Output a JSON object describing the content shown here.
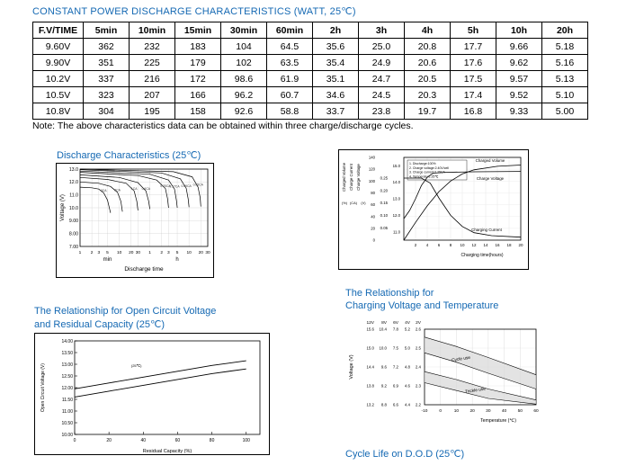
{
  "colors": {
    "accent": "#1569b3",
    "text": "#000000",
    "grid": "#cfcfcf",
    "band_fill": "#d9d9d9"
  },
  "header": {
    "title": "CONSTANT POWER DISCHARGE CHARACTERISTICS (WATT, 25℃)",
    "note": "Note: The above characteristics data can be obtained within three charge/discharge cycles."
  },
  "table": {
    "headers": [
      "F.V/TIME",
      "5min",
      "10min",
      "15min",
      "30min",
      "60min",
      "2h",
      "3h",
      "4h",
      "5h",
      "10h",
      "20h"
    ],
    "rows": [
      [
        "9.60V",
        "362",
        "232",
        "183",
        "104",
        "64.5",
        "35.6",
        "25.0",
        "20.8",
        "17.7",
        "9.66",
        "5.18"
      ],
      [
        "9.90V",
        "351",
        "225",
        "179",
        "102",
        "63.5",
        "35.4",
        "24.9",
        "20.6",
        "17.6",
        "9.62",
        "5.16"
      ],
      [
        "10.2V",
        "337",
        "216",
        "172",
        "98.6",
        "61.9",
        "35.1",
        "24.7",
        "20.5",
        "17.5",
        "9.57",
        "5.13"
      ],
      [
        "10.5V",
        "323",
        "207",
        "166",
        "96.2",
        "60.7",
        "34.6",
        "24.5",
        "20.3",
        "17.4",
        "9.52",
        "5.10"
      ],
      [
        "10.8V",
        "304",
        "195",
        "158",
        "92.6",
        "58.8",
        "33.7",
        "23.8",
        "19.7",
        "16.8",
        "9.33",
        "5.00"
      ]
    ]
  },
  "section_titles": {
    "discharge": "Discharge Characteristics (25℃)",
    "ocv_line1": "The Relationship for Open Circuit Voltage",
    "ocv_line2": "and Residual Capacity (25℃)",
    "charging_temp_line1": "The Relationship for",
    "charging_temp_line2": "Charging Voltage and Temperature",
    "cycle_life": "Cycle Life on D.O.D (25℃)"
  },
  "chart_data": [
    {
      "id": "discharge-characteristics",
      "type": "line",
      "title": "Discharge Characteristics (25℃)",
      "xlabel": "Discharge time",
      "ylabel": "Voltage (V)",
      "x_scale": "log",
      "x_max_minutes": 1800,
      "x_unit_labels": [
        "min",
        "h"
      ],
      "x_ticks": [
        {
          "t": 1,
          "label": "1"
        },
        {
          "t": 2,
          "label": "2"
        },
        {
          "t": 3,
          "label": "3"
        },
        {
          "t": 5,
          "label": "5"
        },
        {
          "t": 10,
          "label": "10"
        },
        {
          "t": 20,
          "label": "20"
        },
        {
          "t": 30,
          "label": "30"
        },
        {
          "t": 60,
          "label": "1"
        },
        {
          "t": 120,
          "label": "2"
        },
        {
          "t": 180,
          "label": "3"
        },
        {
          "t": 300,
          "label": "5"
        },
        {
          "t": 600,
          "label": "10"
        },
        {
          "t": 1200,
          "label": "20"
        },
        {
          "t": 1800,
          "label": "30"
        }
      ],
      "y_ticks": [
        "13.0",
        "12.0",
        "11.0",
        "10.0",
        "9.00",
        "8.00",
        "7.00"
      ],
      "ylim": [
        7.0,
        13.0
      ],
      "series": [
        {
          "name": "3CA",
          "points": [
            [
              1,
              11.6
            ],
            [
              2,
              11.55
            ],
            [
              3,
              11.45
            ],
            [
              4,
              11.15
            ],
            [
              5,
              10.6
            ],
            [
              6,
              9.6
            ]
          ]
        },
        {
          "name": "2CA",
          "points": [
            [
              1,
              12.0
            ],
            [
              3,
              11.9
            ],
            [
              6,
              11.65
            ],
            [
              9,
              11.2
            ],
            [
              11,
              10.5
            ],
            [
              12,
              9.7
            ]
          ]
        },
        {
          "name": "1CA",
          "points": [
            [
              1,
              12.35
            ],
            [
              5,
              12.2
            ],
            [
              15,
              11.9
            ],
            [
              24,
              11.3
            ],
            [
              28,
              10.5
            ],
            [
              30,
              9.8
            ]
          ]
        },
        {
          "name": "0.6CA",
          "points": [
            [
              1,
              12.55
            ],
            [
              10,
              12.35
            ],
            [
              30,
              11.95
            ],
            [
              48,
              11.3
            ],
            [
              56,
              10.5
            ],
            [
              60,
              9.9
            ]
          ]
        },
        {
          "name": "0.25CA",
          "points": [
            [
              1,
              12.75
            ],
            [
              30,
              12.5
            ],
            [
              90,
              12.15
            ],
            [
              150,
              11.5
            ],
            [
              170,
              10.7
            ],
            [
              180,
              10.0
            ]
          ]
        },
        {
          "name": "0.17CA",
          "points": [
            [
              1,
              12.85
            ],
            [
              60,
              12.6
            ],
            [
              180,
              12.15
            ],
            [
              255,
              11.45
            ],
            [
              285,
              10.6
            ],
            [
              300,
              10.0
            ]
          ]
        },
        {
          "name": "0.09CA",
          "points": [
            [
              1,
              12.95
            ],
            [
              120,
              12.7
            ],
            [
              360,
              12.25
            ],
            [
              510,
              11.5
            ],
            [
              570,
              10.7
            ],
            [
              600,
              10.05
            ]
          ]
        },
        {
          "name": "0.05CA",
          "points": [
            [
              1,
              13.0
            ],
            [
              240,
              12.8
            ],
            [
              720,
              12.4
            ],
            [
              1020,
              11.6
            ],
            [
              1150,
              10.8
            ],
            [
              1200,
              10.1
            ]
          ]
        }
      ]
    },
    {
      "id": "charging-characteristics",
      "type": "line",
      "xlabel": "Charging time(hours)",
      "x_max": 20,
      "x_ticks": [
        "2",
        "4",
        "6",
        "8",
        "10",
        "12",
        "14",
        "16",
        "18",
        "20"
      ],
      "axes": [
        {
          "name": "Charged Volume",
          "unit": "(%)",
          "min": 0,
          "max": 140,
          "ticks": [
            "140",
            "120",
            "100",
            "80",
            "60",
            "40",
            "20",
            "0"
          ]
        },
        {
          "name": "Charge Current",
          "unit": "(CA)",
          "min": 0,
          "max": 0.3333,
          "ticks": [
            "0.25",
            "0.20",
            "0.15",
            "0.10",
            "0.05"
          ]
        },
        {
          "name": "Charge Voltage",
          "unit": "(V)",
          "min": 10.5,
          "max": 15.5,
          "ticks": [
            "15.0",
            "14.0",
            "13.0",
            "12.0",
            "11.0"
          ]
        }
      ],
      "legend": [
        "1. Discharge:100%",
        "2. Charge voltage:2.40V/cell",
        "3. Charge current:0.25CA",
        "4. Temperature:25℃"
      ],
      "series": [
        {
          "name": "Charged Volume",
          "axis": 0,
          "points": [
            [
              0,
              0
            ],
            [
              2,
              30
            ],
            [
              4,
              58
            ],
            [
              6,
              82
            ],
            [
              8,
              100
            ],
            [
              10,
              112
            ],
            [
              12,
              119
            ],
            [
              16,
              125
            ],
            [
              20,
              127
            ]
          ]
        },
        {
          "name": "Charge Voltage",
          "axis": 2,
          "points": [
            [
              0,
              11.8
            ],
            [
              1,
              12.3
            ],
            [
              2,
              13.0
            ],
            [
              3,
              13.8
            ],
            [
              4,
              14.3
            ],
            [
              5,
              14.55
            ],
            [
              7,
              14.6
            ],
            [
              12,
              14.63
            ],
            [
              20,
              14.65
            ]
          ]
        },
        {
          "name": "Charging Current",
          "axis": 1,
          "points": [
            [
              0,
              0.25
            ],
            [
              3,
              0.25
            ],
            [
              4.5,
              0.23
            ],
            [
              6,
              0.17
            ],
            [
              8,
              0.1
            ],
            [
              10,
              0.055
            ],
            [
              12,
              0.03
            ],
            [
              15,
              0.018
            ],
            [
              20,
              0.012
            ]
          ]
        }
      ],
      "series_labels": [
        {
          "text": "Charged Volume",
          "x": 168,
          "y": 13
        },
        {
          "text": "Charge Voltage",
          "x": 168,
          "y": 33
        },
        {
          "text": "Charging Current",
          "x": 164,
          "y": 90
        }
      ]
    },
    {
      "id": "open-circuit-voltage-residual-capacity",
      "type": "line",
      "title": "The Relationship for Open Circuit Voltage and Residual Capacity (25℃)",
      "xlabel": "Residual Capacity (%)",
      "ylabel": "Open Circuit Voltage (V)",
      "xlim": [
        0,
        108
      ],
      "x_ticks": [
        "0",
        "20",
        "40",
        "60",
        "80",
        "100"
      ],
      "ylim": [
        10.0,
        14.0
      ],
      "y_ticks": [
        "14.00",
        "13.50",
        "13.00",
        "12.50",
        "12.00",
        "11.50",
        "11.00",
        "10.50",
        "10.00"
      ],
      "annotation": "(25℃)",
      "series": [
        {
          "name": "upper",
          "points": [
            [
              0,
              11.95
            ],
            [
              20,
              12.2
            ],
            [
              40,
              12.45
            ],
            [
              60,
              12.7
            ],
            [
              80,
              12.95
            ],
            [
              100,
              13.15
            ]
          ]
        },
        {
          "name": "lower",
          "points": [
            [
              0,
              11.6
            ],
            [
              20,
              11.85
            ],
            [
              40,
              12.1
            ],
            [
              60,
              12.35
            ],
            [
              80,
              12.6
            ],
            [
              100,
              12.8
            ]
          ]
        }
      ]
    },
    {
      "id": "charging-voltage-temperature",
      "type": "line",
      "title": "The Relationship for Charging Voltage and Temperature",
      "xlabel": "Temperature (℃)",
      "ylabel": "Voltage (V)",
      "scale_headers": [
        "12V",
        "8V",
        "6V",
        "4V",
        "2V"
      ],
      "scale_rows": [
        [
          "15.6",
          "10.4",
          "7.8",
          "5.2",
          "2.6"
        ],
        [
          "15.0",
          "10.0",
          "7.5",
          "5.0",
          "2.5"
        ],
        [
          "14.4",
          "9.6",
          "7.2",
          "4.8",
          "2.4"
        ],
        [
          "13.8",
          "9.2",
          "6.9",
          "4.6",
          "2.3"
        ],
        [
          "13.2",
          "8.8",
          "6.6",
          "4.4",
          "2.2"
        ]
      ],
      "xlim": [
        -10,
        60
      ],
      "x_ticks": [
        "-10",
        "0",
        "10",
        "20",
        "30",
        "40",
        "50",
        "60"
      ],
      "ylim_12v": [
        13.2,
        15.6
      ],
      "bands": [
        {
          "name": "Cycle use",
          "label_pos": [
            13,
            14.62
          ],
          "upper": [
            [
              -10,
              15.35
            ],
            [
              10,
              15.05
            ],
            [
              30,
              14.7
            ],
            [
              60,
              14.15
            ]
          ],
          "lower": [
            [
              -10,
              14.85
            ],
            [
              10,
              14.55
            ],
            [
              30,
              14.2
            ],
            [
              60,
              13.7
            ]
          ]
        },
        {
          "name": "Trickle use",
          "label_pos": [
            22,
            13.62
          ],
          "upper": [
            [
              -10,
              14.25
            ],
            [
              10,
              14.0
            ],
            [
              30,
              13.7
            ],
            [
              60,
              13.35
            ]
          ],
          "lower": [
            [
              -10,
              13.9
            ],
            [
              10,
              13.65
            ],
            [
              30,
              13.4
            ],
            [
              60,
              13.22
            ]
          ]
        }
      ]
    }
  ]
}
